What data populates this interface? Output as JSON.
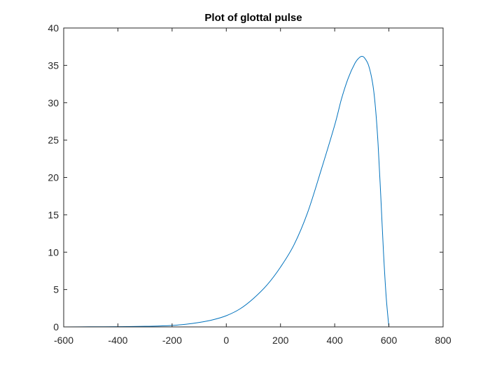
{
  "chart_data": {
    "type": "line",
    "title": "Plot of glottal pulse",
    "xlabel": "",
    "ylabel": "",
    "xlim": [
      -600,
      800
    ],
    "ylim": [
      0,
      40
    ],
    "grid": false,
    "box": true,
    "x_ticks": [
      -600,
      -400,
      -200,
      0,
      200,
      400,
      600,
      800
    ],
    "y_ticks": [
      0,
      5,
      10,
      15,
      20,
      25,
      30,
      35,
      40
    ],
    "colors": {
      "line": "#0072bd",
      "axes": "#262626",
      "background": "#ffffff"
    },
    "series": [
      {
        "x": [
          -600,
          -500,
          -400,
          -300,
          -250,
          -200,
          -150,
          -100,
          -50,
          0,
          50,
          100,
          150,
          200,
          250,
          300,
          350,
          400,
          425,
          450,
          475,
          490,
          500,
          510,
          525,
          540,
          550,
          560,
          570,
          580,
          590,
          600
        ],
        "values": [
          0.0,
          0.02,
          0.04,
          0.08,
          0.12,
          0.2,
          0.35,
          0.6,
          0.95,
          1.5,
          2.4,
          3.8,
          5.6,
          8.0,
          11.0,
          15.3,
          21.0,
          27.0,
          30.5,
          33.3,
          35.3,
          36.0,
          36.2,
          36.0,
          35.0,
          32.6,
          29.5,
          24.5,
          17.5,
          10.0,
          4.0,
          0.0
        ]
      }
    ]
  }
}
